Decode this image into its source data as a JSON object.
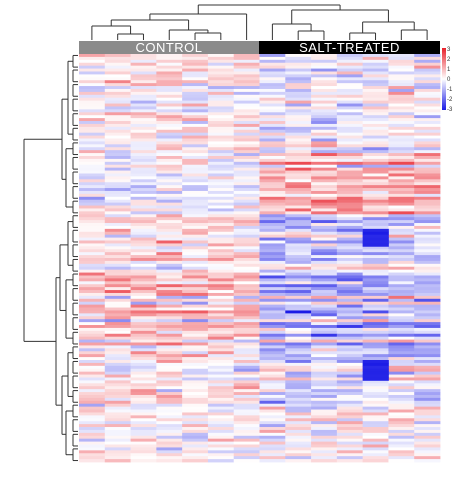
{
  "colors": {
    "control_bar": "#8a8a8a",
    "salt_bar": "#000000",
    "bar_text": "#ffffff",
    "high": "#e8202a",
    "mid": "#ffffff",
    "low": "#1a1ae6",
    "dendrogram": "#333333"
  },
  "groups": [
    {
      "label": "CONTROL",
      "columns": 7
    },
    {
      "label": "SALT-TREATED",
      "columns": 7
    }
  ],
  "chart_data": {
    "type": "heatmap",
    "columns": 14,
    "rows": 140,
    "groups": [
      "CONTROL",
      "SALT-TREATED"
    ],
    "color_scale": {
      "min": -3,
      "max": 3,
      "ticks": [
        "3",
        "2",
        "1",
        "0",
        "-1",
        "-2",
        "-3"
      ],
      "colors": [
        "#1a1ae6",
        "#ffffff",
        "#e8202a"
      ]
    },
    "row_cluster_means": [
      {
        "label": "",
        "rows": 30,
        "control": 0.3,
        "salt": -0.2
      },
      {
        "label": "",
        "rows": 25,
        "control": -0.2,
        "salt": 0.9
      },
      {
        "label": "",
        "rows": 20,
        "control": 0.5,
        "salt": -0.8
      },
      {
        "label": "",
        "rows": 25,
        "control": 0.9,
        "salt": -1.1
      },
      {
        "label": "",
        "rows": 20,
        "control": 0.4,
        "salt": -0.6
      },
      {
        "label": "",
        "rows": 20,
        "control": 0.1,
        "salt": 0.2
      }
    ],
    "salt_column_bias": [
      -0.3,
      -0.4,
      -0.2,
      0.0,
      0.1,
      0.9,
      0.8
    ],
    "grid": false,
    "legend": "top-right"
  }
}
